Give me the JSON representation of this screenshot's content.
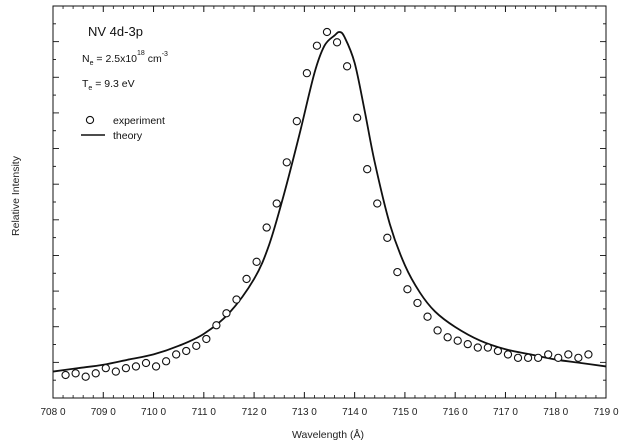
{
  "chart_data": {
    "type": "scatter",
    "title": "",
    "xlabel": "Wavelength (Å)",
    "ylabel": "Relative Intensity",
    "xlim": [
      708.0,
      719.0
    ],
    "ylim": [
      0,
      1
    ],
    "x_ticks": [
      "708 0",
      "709 0",
      "710 0",
      "711 0",
      "712 0",
      "713 0",
      "714 0",
      "715 0",
      "716 0",
      "717 0",
      "718 0",
      "719 0"
    ],
    "x_tick_values": [
      708,
      709,
      710,
      711,
      712,
      713,
      714,
      715,
      716,
      717,
      718,
      719
    ],
    "grid": false,
    "legend_position": "upper-left",
    "annotations": {
      "line1": "NV  4d-3p",
      "line2_base": "N",
      "line2_sub": "e",
      "line2_mid": " = 2.5x10",
      "line2_sup": "18",
      "line2_unit": " cm",
      "line2_unit_sup": "-3",
      "line3_base": "T",
      "line3_sub": "e",
      "line3_rest": " = 9.3 eV"
    },
    "series": [
      {
        "name": "experiment",
        "marker": "open-circle",
        "x": [
          708.25,
          708.45,
          708.65,
          708.85,
          709.05,
          709.25,
          709.45,
          709.65,
          709.85,
          710.05,
          710.25,
          710.45,
          710.65,
          710.85,
          711.05,
          711.25,
          711.45,
          711.65,
          711.85,
          712.05,
          712.25,
          712.45,
          712.65,
          712.85,
          713.05,
          713.25,
          713.45,
          713.65,
          713.85,
          714.05,
          714.25,
          714.45,
          714.65,
          714.85,
          715.05,
          715.25,
          715.45,
          715.65,
          715.85,
          716.05,
          716.25,
          716.45,
          716.65,
          716.85,
          717.05,
          717.25,
          717.45,
          717.65,
          717.85,
          718.05,
          718.25,
          718.45,
          718.65
        ],
        "y": [
          0.0,
          0.005,
          -0.005,
          0.005,
          0.02,
          0.01,
          0.02,
          0.025,
          0.035,
          0.025,
          0.04,
          0.06,
          0.07,
          0.085,
          0.105,
          0.145,
          0.18,
          0.22,
          0.28,
          0.33,
          0.43,
          0.5,
          0.62,
          0.74,
          0.88,
          0.96,
          1.0,
          0.97,
          0.9,
          0.75,
          0.6,
          0.5,
          0.4,
          0.3,
          0.25,
          0.21,
          0.17,
          0.13,
          0.11,
          0.1,
          0.09,
          0.08,
          0.08,
          0.07,
          0.06,
          0.05,
          0.05,
          0.05,
          0.06,
          0.05,
          0.06,
          0.05,
          0.06
        ]
      },
      {
        "name": "theory",
        "marker": "line",
        "x": [
          708.0,
          708.5,
          709.0,
          709.5,
          710.0,
          710.5,
          711.0,
          711.5,
          712.0,
          712.3,
          712.6,
          712.9,
          713.2,
          713.4,
          713.6,
          713.7,
          713.8,
          714.0,
          714.2,
          714.4,
          714.7,
          715.0,
          715.3,
          715.6,
          716.0,
          716.5,
          717.0,
          717.5,
          718.0,
          718.5,
          719.0
        ],
        "y": [
          0.01,
          0.02,
          0.03,
          0.045,
          0.06,
          0.085,
          0.12,
          0.18,
          0.28,
          0.38,
          0.53,
          0.7,
          0.88,
          0.96,
          0.99,
          1.0,
          0.985,
          0.91,
          0.77,
          0.62,
          0.44,
          0.32,
          0.24,
          0.185,
          0.14,
          0.1,
          0.075,
          0.06,
          0.045,
          0.035,
          0.025
        ]
      }
    ]
  }
}
